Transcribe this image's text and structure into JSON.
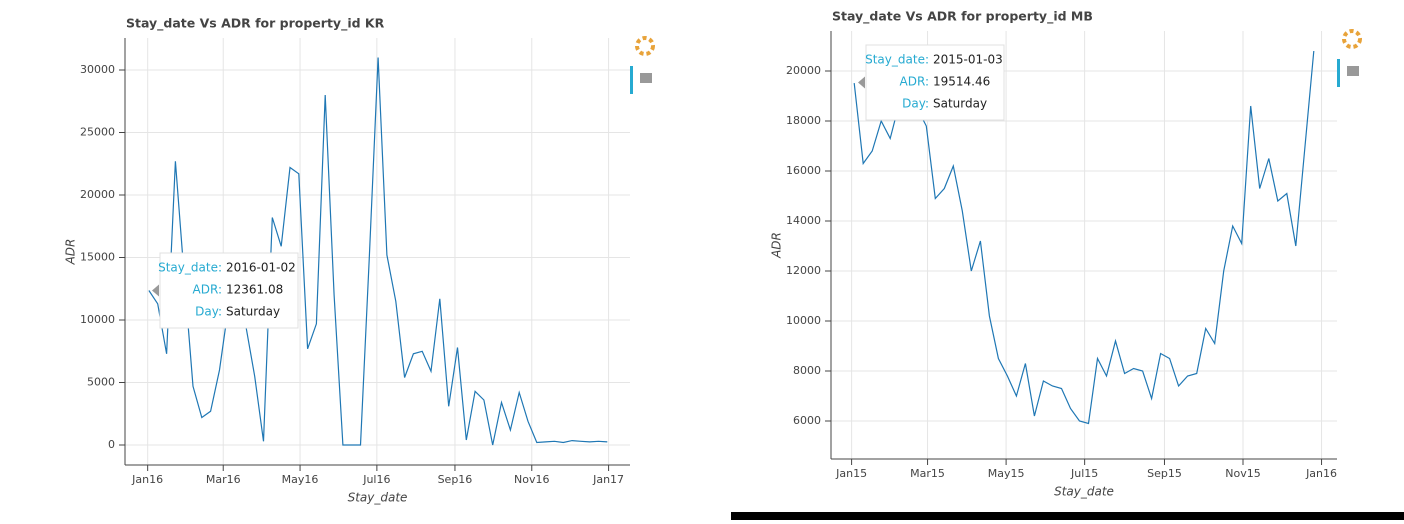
{
  "chart_data": [
    {
      "type": "line",
      "title": "Stay_date Vs ADR for property_id KR",
      "x_label": "Stay_date",
      "y_label": "ADR",
      "color": "#1f77b4",
      "grid": true,
      "x": [
        "2016-01-02",
        "2016-01-09",
        "2016-01-16",
        "2016-01-23",
        "2016-01-30",
        "2016-02-06",
        "2016-02-13",
        "2016-02-20",
        "2016-02-27",
        "2016-03-05",
        "2016-03-12",
        "2016-03-19",
        "2016-03-26",
        "2016-04-02",
        "2016-04-09",
        "2016-04-16",
        "2016-04-23",
        "2016-04-30",
        "2016-05-07",
        "2016-05-14",
        "2016-05-21",
        "2016-05-28",
        "2016-06-04",
        "2016-06-11",
        "2016-06-18",
        "2016-06-25",
        "2016-07-02",
        "2016-07-09",
        "2016-07-16",
        "2016-07-23",
        "2016-07-30",
        "2016-08-06",
        "2016-08-13",
        "2016-08-20",
        "2016-08-27",
        "2016-09-03",
        "2016-09-10",
        "2016-09-17",
        "2016-09-24",
        "2016-10-01",
        "2016-10-08",
        "2016-10-15",
        "2016-10-22",
        "2016-10-29",
        "2016-11-05",
        "2016-11-12",
        "2016-11-19",
        "2016-11-26",
        "2016-12-03",
        "2016-12-10",
        "2016-12-17",
        "2016-12-24",
        "2016-12-31"
      ],
      "values": [
        12361.08,
        11300,
        7300,
        22700,
        13500,
        4700,
        2200,
        2700,
        6000,
        11000,
        13000,
        9500,
        5500,
        300,
        18200,
        15900,
        22200,
        21700,
        7700,
        9700,
        28000,
        12000,
        0,
        0,
        0,
        15000,
        31000,
        15200,
        11500,
        5400,
        7300,
        7500,
        5900,
        11700,
        3100,
        7800,
        400,
        4300,
        3600,
        0,
        3400,
        1200,
        4200,
        1900,
        200,
        250,
        300,
        200,
        350,
        300,
        250,
        300,
        250
      ],
      "xlim": [
        "2015-12-14",
        "2017-01-18"
      ],
      "xticks": [
        {
          "value": "2016-01-01",
          "label": "Jan16"
        },
        {
          "value": "2016-03-01",
          "label": "Mar16"
        },
        {
          "value": "2016-05-01",
          "label": "May16"
        },
        {
          "value": "2016-07-01",
          "label": "Jul16"
        },
        {
          "value": "2016-09-01",
          "label": "Sep16"
        },
        {
          "value": "2016-11-01",
          "label": "Nov16"
        },
        {
          "value": "2017-01-01",
          "label": "Jan17"
        }
      ],
      "ylim": [
        -1600,
        32560
      ],
      "yticks": [
        0,
        5000,
        10000,
        15000,
        20000,
        25000,
        30000
      ],
      "tooltip": [
        {
          "label": "Stay_date:",
          "value": "2016-01-02"
        },
        {
          "label": "ADR:",
          "value": 12361.08
        },
        {
          "label": "Day:",
          "value": "Saturday"
        }
      ]
    },
    {
      "type": "line",
      "title": "Stay_date Vs ADR for property_id MB",
      "x_label": "Stay_date",
      "y_label": "ADR",
      "color": "#1f77b4",
      "grid": true,
      "x": [
        "2015-01-03",
        "2015-01-10",
        "2015-01-17",
        "2015-01-24",
        "2015-01-31",
        "2015-02-07",
        "2015-02-14",
        "2015-02-21",
        "2015-02-28",
        "2015-03-07",
        "2015-03-14",
        "2015-03-21",
        "2015-03-28",
        "2015-04-04",
        "2015-04-11",
        "2015-04-18",
        "2015-04-25",
        "2015-05-02",
        "2015-05-09",
        "2015-05-16",
        "2015-05-23",
        "2015-05-30",
        "2015-06-06",
        "2015-06-13",
        "2015-06-20",
        "2015-06-27",
        "2015-07-04",
        "2015-07-11",
        "2015-07-18",
        "2015-07-25",
        "2015-08-01",
        "2015-08-08",
        "2015-08-15",
        "2015-08-22",
        "2015-08-29",
        "2015-09-05",
        "2015-09-12",
        "2015-09-19",
        "2015-09-26",
        "2015-10-03",
        "2015-10-10",
        "2015-10-17",
        "2015-10-24",
        "2015-10-31",
        "2015-11-07",
        "2015-11-14",
        "2015-11-21",
        "2015-11-28",
        "2015-12-05",
        "2015-12-12",
        "2015-12-19",
        "2015-12-26"
      ],
      "values": [
        19514.46,
        16300,
        16800,
        18000,
        17300,
        18700,
        19200,
        18500,
        17800,
        14900,
        15300,
        16200,
        14400,
        12000,
        13200,
        10200,
        8500,
        7800,
        7000,
        8300,
        6200,
        7600,
        7400,
        7300,
        6500,
        6000,
        5900,
        8500,
        7800,
        9200,
        7900,
        8100,
        8000,
        6900,
        8700,
        8500,
        7400,
        7800,
        7900,
        9700,
        9100,
        12000,
        13800,
        13100,
        18600,
        15300,
        16500,
        14800,
        15100,
        13000,
        16900,
        20800
      ],
      "xlim": [
        "2014-12-16",
        "2016-01-13"
      ],
      "xticks": [
        {
          "value": "2015-01-01",
          "label": "Jan15"
        },
        {
          "value": "2015-03-01",
          "label": "Mar15"
        },
        {
          "value": "2015-05-01",
          "label": "May15"
        },
        {
          "value": "2015-07-01",
          "label": "Jul15"
        },
        {
          "value": "2015-09-01",
          "label": "Sep15"
        },
        {
          "value": "2015-11-01",
          "label": "Nov15"
        },
        {
          "value": "2016-01-01",
          "label": "Jan16"
        }
      ],
      "ylim": [
        4480,
        21600
      ],
      "yticks": [
        6000,
        8000,
        10000,
        12000,
        14000,
        16000,
        18000,
        20000
      ],
      "tooltip": [
        {
          "label": "Stay_date:",
          "value": "2015-01-03"
        },
        {
          "label": "ADR:",
          "value": 19514.46
        },
        {
          "label": "Day:",
          "value": "Saturday"
        }
      ]
    }
  ]
}
